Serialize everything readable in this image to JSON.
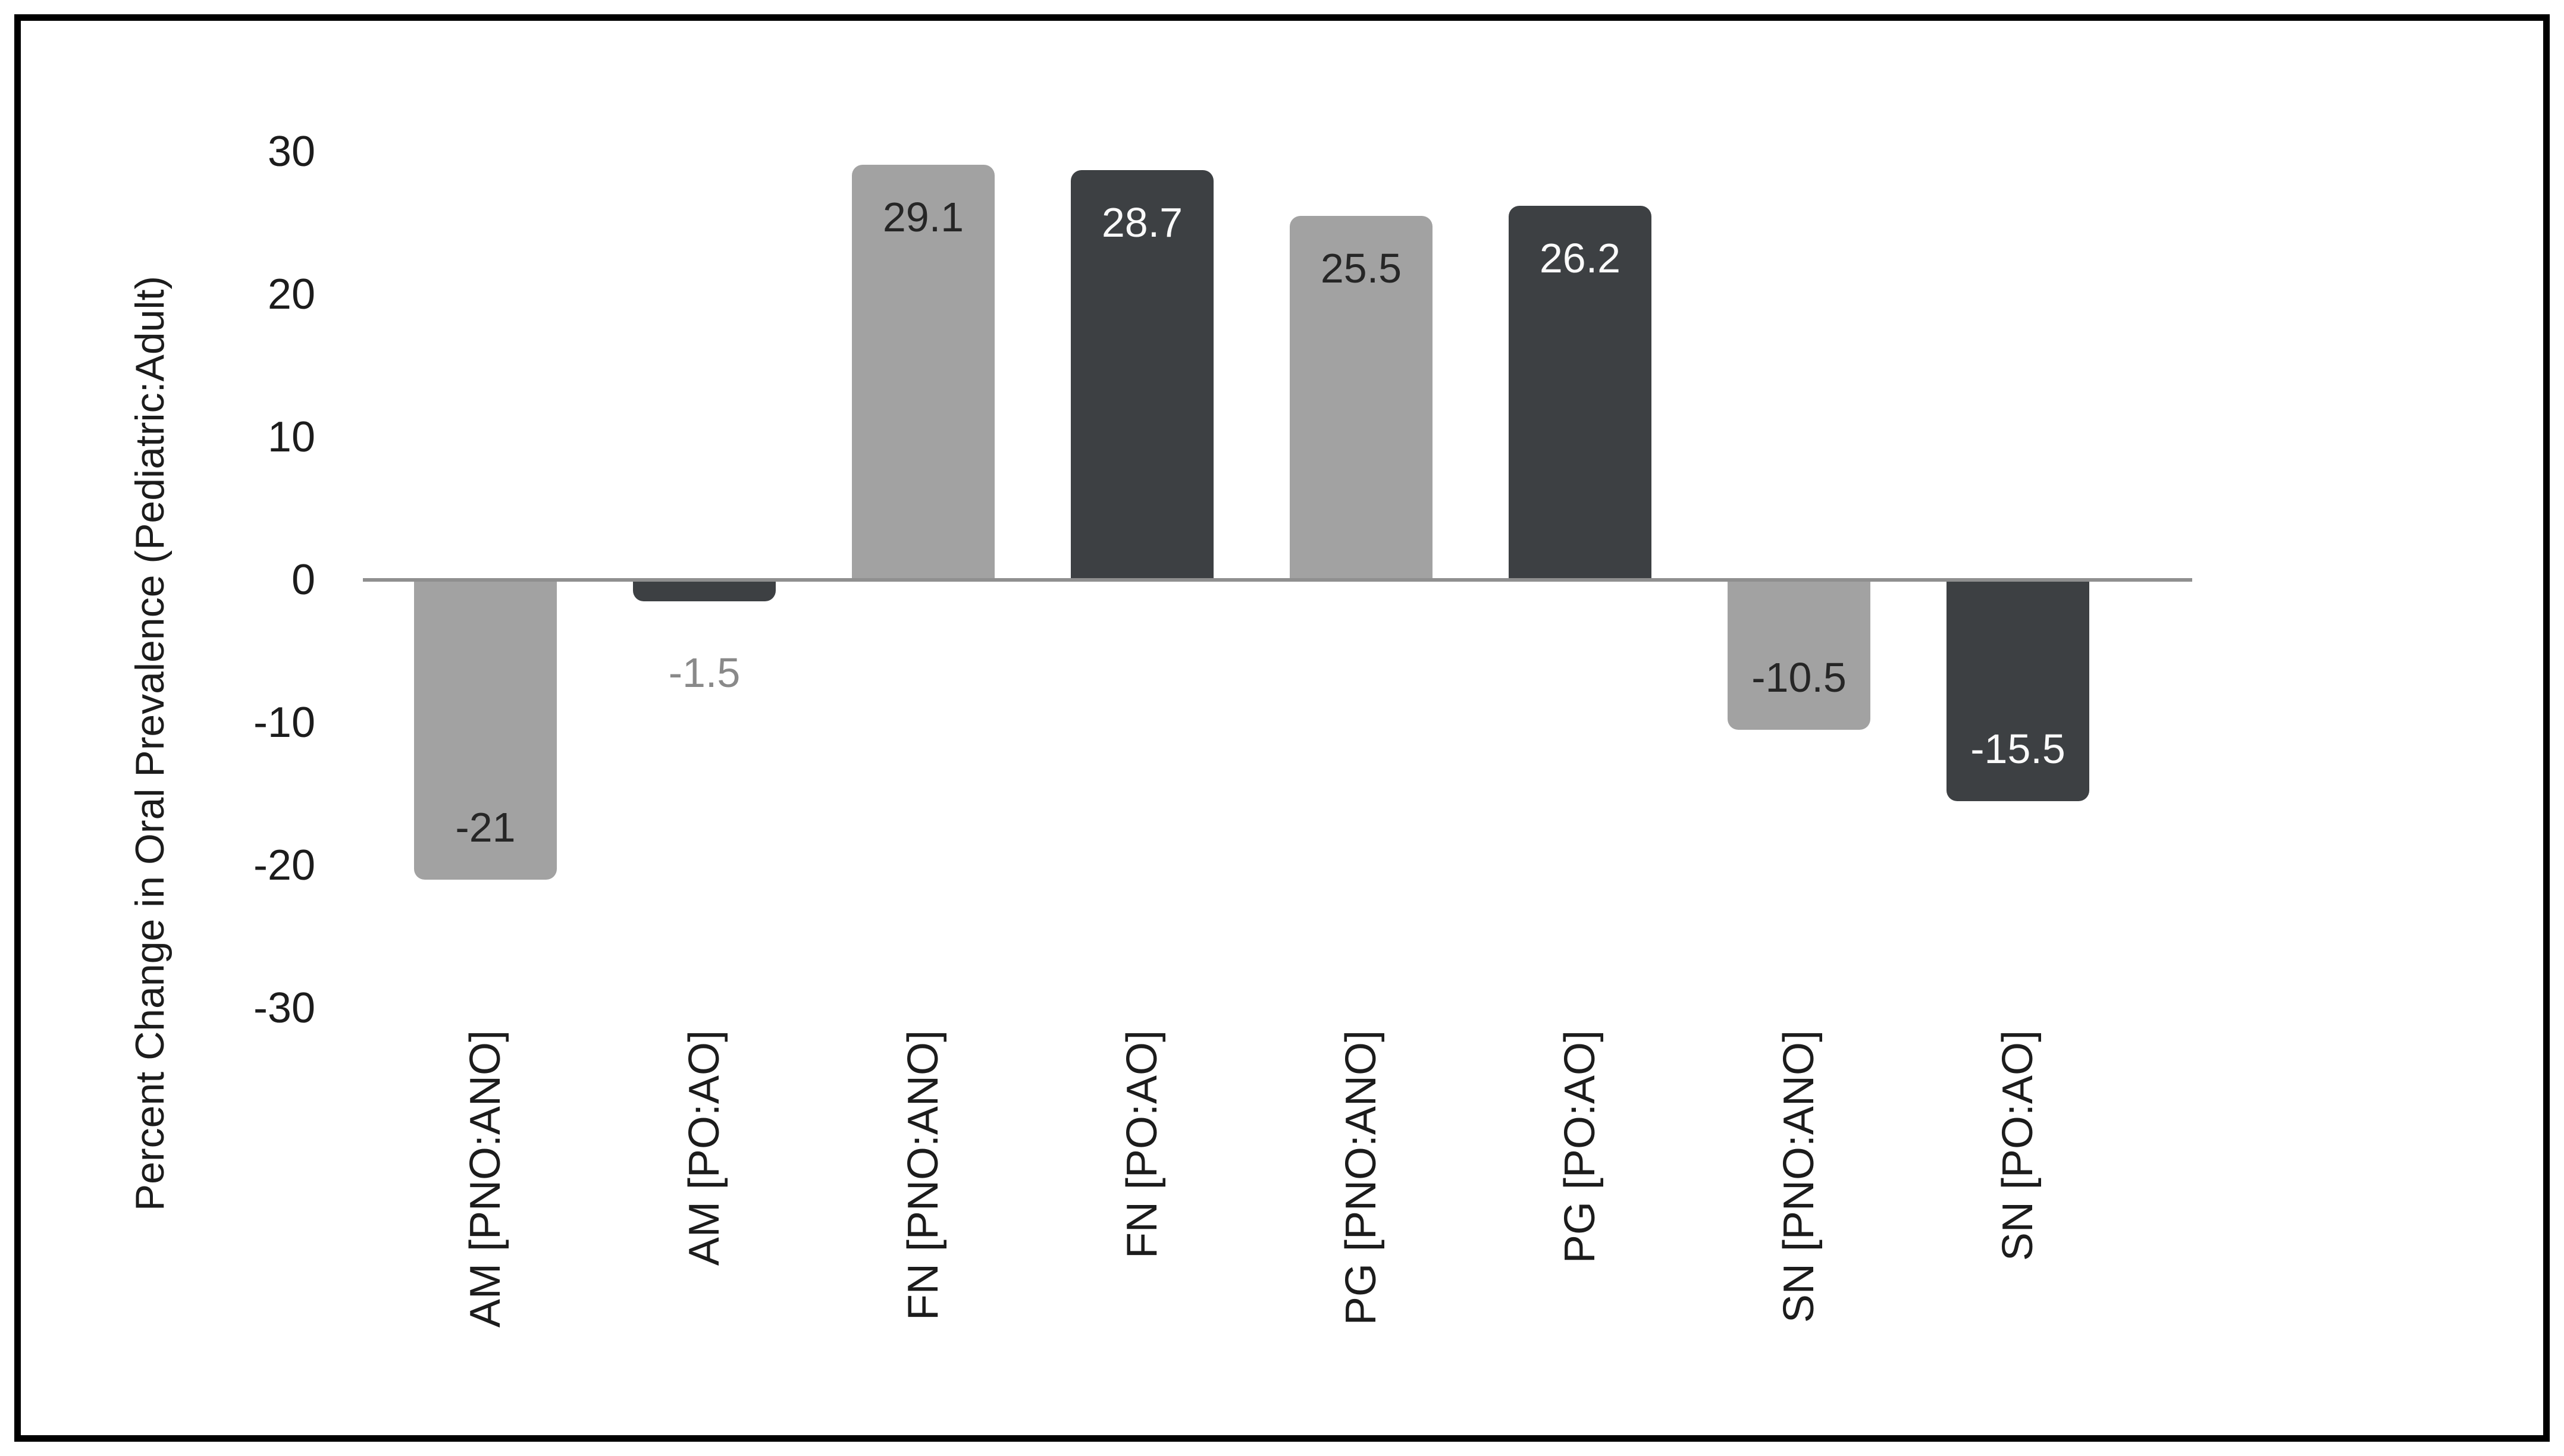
{
  "chart_data": {
    "type": "bar",
    "title": "",
    "xlabel": "",
    "ylabel": "Percent Change in Oral Prevalence (Pediatric:Adult)",
    "ylim": [
      -30,
      30
    ],
    "yticks": [
      30,
      20,
      10,
      0,
      -10,
      -20,
      -30
    ],
    "grid": false,
    "legend": null,
    "categories": [
      "AM [PNO:ANO]",
      "AM [PO:AO]",
      "FN [PNO:ANO]",
      "FN [PO:AO]",
      "PG [PNO:ANO]",
      "PG [PO:AO]",
      "SN [PNO:ANO]",
      "SN [PO:AO]"
    ],
    "values": [
      -21,
      -1.5,
      29.1,
      28.7,
      25.5,
      26.2,
      -10.5,
      -15.5
    ],
    "bars": [
      {
        "category": "AM [PNO:ANO]",
        "value": -21,
        "label": "-21",
        "shade": "light"
      },
      {
        "category": "AM [PO:AO]",
        "value": -1.5,
        "label": "-1.5",
        "shade": "dark"
      },
      {
        "category": "FN [PNO:ANO]",
        "value": 29.1,
        "label": "29.1",
        "shade": "light"
      },
      {
        "category": "FN [PO:AO]",
        "value": 28.7,
        "label": "28.7",
        "shade": "dark"
      },
      {
        "category": "PG [PNO:ANO]",
        "value": 25.5,
        "label": "25.5",
        "shade": "light"
      },
      {
        "category": "PG [PO:AO]",
        "value": 26.2,
        "label": "26.2",
        "shade": "dark"
      },
      {
        "category": "SN [PNO:ANO]",
        "value": -10.5,
        "label": "-10.5",
        "shade": "light"
      },
      {
        "category": "SN [PO:AO]",
        "value": -15.5,
        "label": "-15.5",
        "shade": "dark"
      }
    ]
  },
  "colors": {
    "background": "#ffffff",
    "frame_border": "#000000",
    "light_bar": "#a2a2a2",
    "dark_bar": "#3d4043",
    "axis_line": "#8f8f8f",
    "tick_text": "#1c1c1c",
    "label_on_light": "#262626",
    "label_on_dark": "#fafafa",
    "label_outside": "#898989"
  }
}
